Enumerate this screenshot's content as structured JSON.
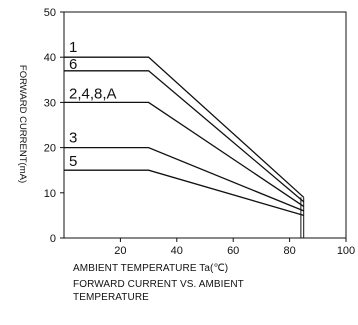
{
  "chart_data": {
    "type": "line",
    "title": "",
    "xlabel": "AMBIENT TEMPERATURE Ta(℃)",
    "ylabel": "FORWARD CURRENT(mA)",
    "xlim": [
      0,
      100
    ],
    "ylim": [
      0,
      50
    ],
    "xticks": [
      "20",
      "40",
      "60",
      "80",
      "100"
    ],
    "yticks": [
      "0",
      "10",
      "20",
      "30",
      "40",
      "50"
    ],
    "grid": false,
    "legend": "left",
    "series": [
      {
        "name": "1",
        "points": [
          [
            0,
            40
          ],
          [
            30,
            40
          ],
          [
            85,
            9
          ]
        ]
      },
      {
        "name": "6",
        "points": [
          [
            0,
            37
          ],
          [
            30,
            37
          ],
          [
            85,
            8
          ]
        ]
      },
      {
        "name": "2,4,8,A",
        "points": [
          [
            0,
            30
          ],
          [
            30,
            30
          ],
          [
            85,
            7
          ]
        ]
      },
      {
        "name": "3",
        "points": [
          [
            0,
            20
          ],
          [
            30,
            20
          ],
          [
            85,
            6
          ]
        ]
      },
      {
        "name": "5",
        "points": [
          [
            0,
            15
          ],
          [
            30,
            15
          ],
          [
            85,
            5
          ]
        ]
      }
    ]
  },
  "caption": {
    "xlabel_line": "AMBIENT TEMPERATURE Ta(℃)",
    "title_line1": "FORWARD CURRENT VS. AMBIENT",
    "title_line2": "TEMPERATURE"
  }
}
